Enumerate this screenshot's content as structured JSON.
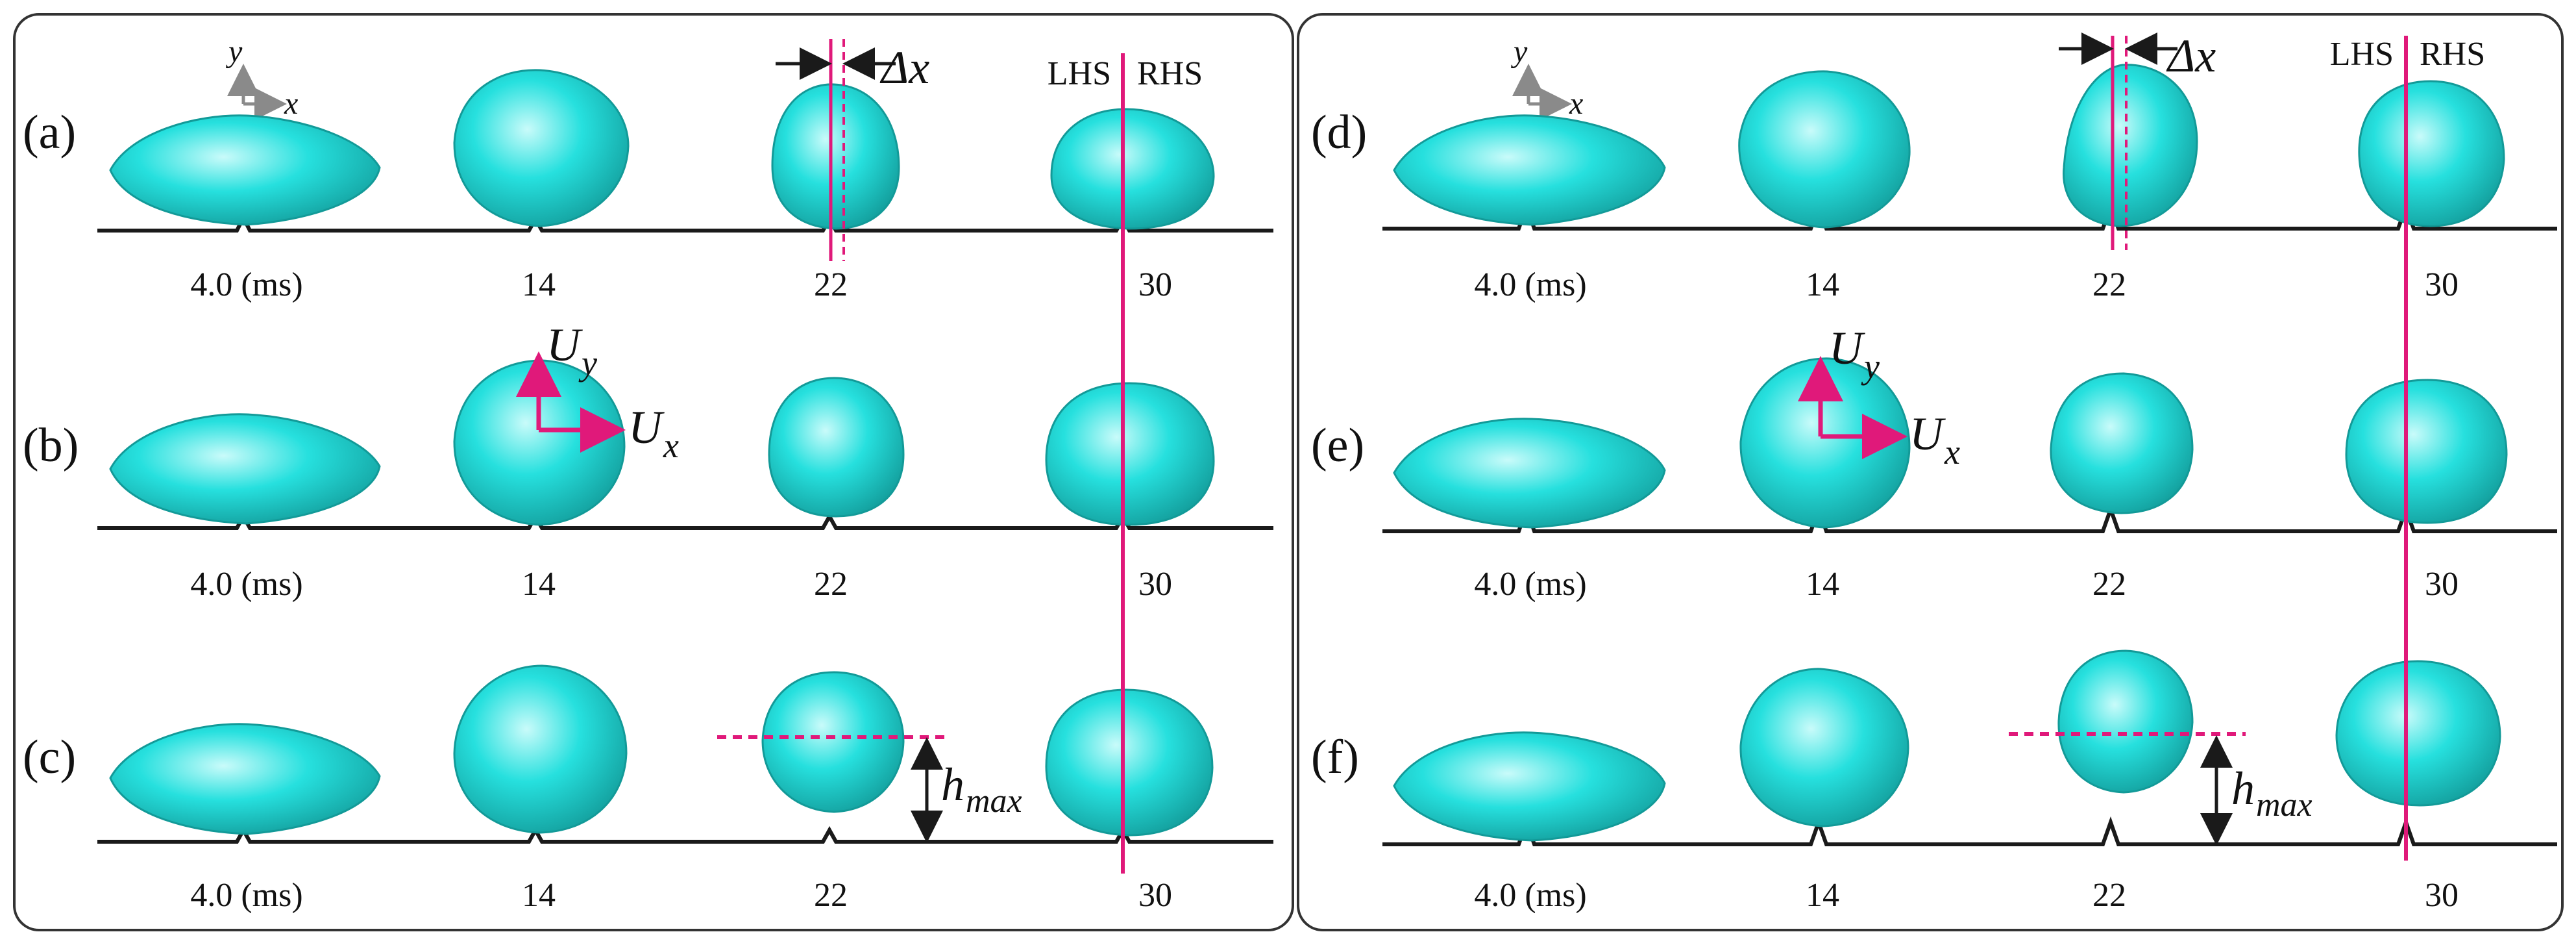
{
  "colors": {
    "droplet_fill": "#26e0de",
    "droplet_highlight": "#c9fbfa",
    "droplet_shade": "#129a98",
    "accent": "#e0197a",
    "line": "#1a1a1a",
    "frame": "#333333",
    "axes_icon": "#8a8a8a"
  },
  "panels": [
    {
      "id": "left",
      "rows": [
        {
          "label": "(a)",
          "times": [
            "4.0 (ms)",
            "14",
            "22",
            "30"
          ]
        },
        {
          "label": "(b)",
          "times": [
            "4.0 (ms)",
            "14",
            "22",
            "30"
          ]
        },
        {
          "label": "(c)",
          "times": [
            "4.0 (ms)",
            "14",
            "22",
            "30"
          ]
        }
      ],
      "axes": {
        "x": "x",
        "y": "y"
      },
      "delta": "Δx",
      "lhs": "LHS",
      "rhs": "RHS",
      "velocity": {
        "ux": "U",
        "ux_sub": "x",
        "uy": "U",
        "uy_sub": "y"
      },
      "height": {
        "main": "h",
        "sub": "max"
      }
    },
    {
      "id": "right",
      "rows": [
        {
          "label": "(d)",
          "times": [
            "4.0 (ms)",
            "14",
            "22",
            "30"
          ]
        },
        {
          "label": "(e)",
          "times": [
            "4.0 (ms)",
            "14",
            "22",
            "30"
          ]
        },
        {
          "label": "(f)",
          "times": [
            "4.0 (ms)",
            "14",
            "22",
            "30"
          ]
        }
      ],
      "axes": {
        "x": "x",
        "y": "y"
      },
      "delta": "Δx",
      "lhs": "LHS",
      "rhs": "RHS",
      "velocity": {
        "ux": "U",
        "ux_sub": "x",
        "uy": "U",
        "uy_sub": "y"
      },
      "height": {
        "main": "h",
        "sub": "max"
      }
    }
  ]
}
